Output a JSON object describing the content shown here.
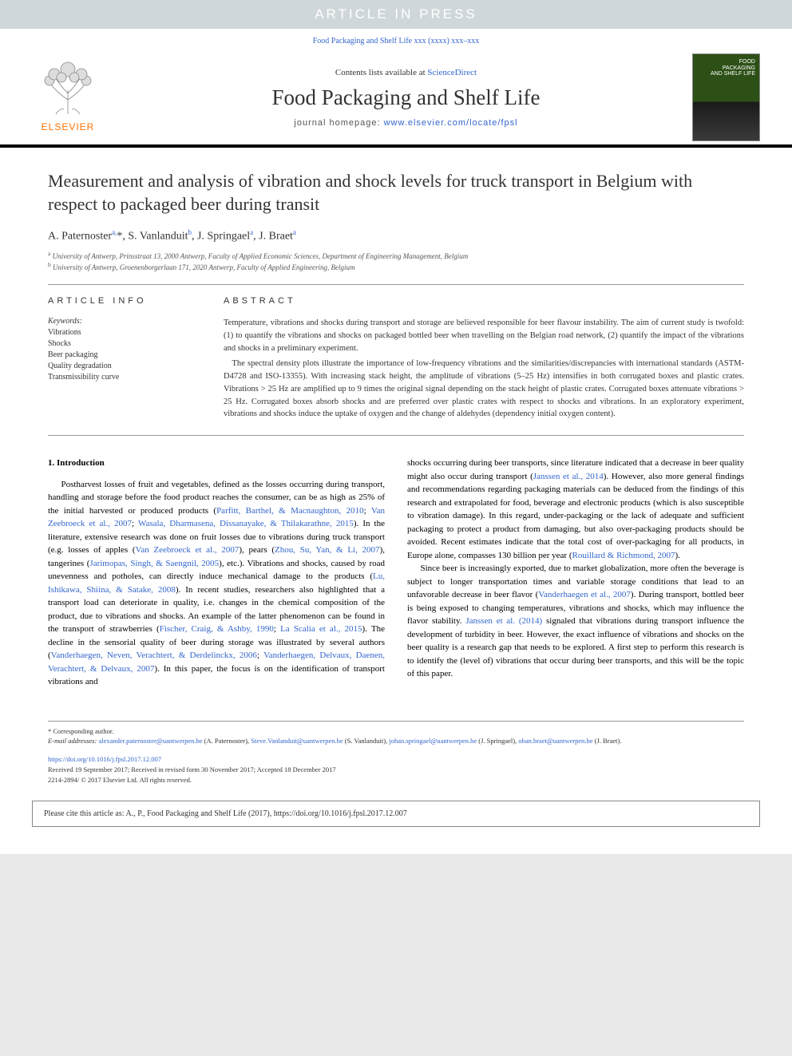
{
  "banner": {
    "text": "ARTICLE IN PRESS"
  },
  "journal_ref": "Food Packaging and Shelf Life xxx (xxxx) xxx–xxx",
  "masthead": {
    "contents_prefix": "Contents lists available at ",
    "contents_link": "ScienceDirect",
    "journal_name": "Food Packaging and Shelf Life",
    "homepage_prefix": "journal homepage: ",
    "homepage_url": "www.elsevier.com/locate/fpsl",
    "publisher": "ELSEVIER",
    "cover_line1": "FOOD",
    "cover_line2": "PACKAGING",
    "cover_line3": "AND SHELF LIFE",
    "logo_color": "#ff7200",
    "tree_color": "#888888"
  },
  "article": {
    "title": "Measurement and analysis of vibration and shock levels for truck transport in Belgium with respect to packaged beer during transit",
    "authors_html": "A. Paternoster<sup>a,</sup>*, S. Vanlanduit<sup>b</sup>, J. Springael<sup>a</sup>, J. Braet<sup>a</sup>",
    "affiliations": [
      {
        "sup": "a",
        "text": "University of Antwerp, Prinsstraat 13, 2000 Antwerp, Faculty of Applied Economic Sciences, Department of Engineering Management, Belgium"
      },
      {
        "sup": "b",
        "text": "University of Antwerp, Groenenborgerlaan 171, 2020 Antwerp, Faculty of Applied Engineering, Belgium"
      }
    ]
  },
  "article_info": {
    "heading": "ARTICLE INFO",
    "keywords_label": "Keywords:",
    "keywords": [
      "Vibrations",
      "Shocks",
      "Beer packaging",
      "Quality degradation",
      "Transmissibility curve"
    ]
  },
  "abstract": {
    "heading": "ABSTRACT",
    "paragraphs": [
      "Temperature, vibrations and shocks during transport and storage are believed responsible for beer flavour instability. The aim of current study is twofold: (1) to quantify the vibrations and shocks on packaged bottled beer when travelling on the Belgian road network, (2) quantify the impact of the vibrations and shocks in a preliminary experiment.",
      "The spectral density plots illustrate the importance of low-frequency vibrations and the similarities/discrepancies with international standards (ASTM-D4728 and ISO-13355). With increasing stack height, the amplitude of vibrations (5–25 Hz) intensifies in both corrugated boxes and plastic crates. Vibrations > 25 Hz are amplified up to 9 times the original signal depending on the stack height of plastic crates. Corrugated boxes attenuate vibrations > 25 Hz. Corrugated boxes absorb shocks and are preferred over plastic crates with respect to shocks and vibrations. In an exploratory experiment, vibrations and shocks induce the uptake of oxygen and the change of aldehydes (dependency initial oxygen content)."
    ]
  },
  "body": {
    "section_number": "1.",
    "section_title": "Introduction",
    "col1_parts": [
      "Postharvest losses of fruit and vegetables, defined as the losses occurring during transport, handling and storage before the food product reaches the consumer, can be as high as 25% of the initial harvested or produced products (",
      "Parfitt, Barthel, & Macnaughton, 2010",
      "; ",
      "Van Zeebroeck et al., 2007",
      "; ",
      "Wasala, Dharmasena, Dissanayake, & Thilakarathne, 2015",
      "). In the literature, extensive research was done on fruit losses due to vibrations during truck transport (e.g. losses of apples (",
      "Van Zeebroeck et al., 2007",
      "), pears (",
      "Zhou, Su, Yan, & Li, 2007",
      "), tangerines (",
      "Jarimopas, Singh, & Saengnil, 2005",
      "), etc.). Vibrations and shocks, caused by road unevenness and potholes, can directly induce mechanical damage to the products (",
      "Lu, Ishikawa, Shiina, & Satake, 2008",
      "). In recent studies, researchers also highlighted that a transport load can deteriorate in quality, i.e. changes in the chemical composition of the product, due to vibrations and shocks. An example of the latter phenomenon can be found in the transport of strawberries (",
      "Fischer, Craig, & Ashby, 1990",
      "; ",
      "La Scalia et al., 2015",
      "). The decline in the sensorial quality of beer during storage was illustrated by several authors (",
      "Vanderhaegen, Neven, Verachtert, & Derdelinckx, 2006",
      "; ",
      "Vanderhaegen, Delvaux, Daenen, Verachtert, & Delvaux, 2007",
      "). In this paper, the focus is on the identification of transport vibrations and "
    ],
    "col2_parts": [
      "shocks occurring during beer transports, since literature indicated that a decrease in beer quality might also occur during transport (",
      "Janssen et al., 2014",
      "). However, also more general findings and recommendations regarding packaging materials can be deduced from the findings of this research and extrapolated for food, beverage and electronic products (which is also susceptible to vibration damage). In this regard, under-packaging or the lack of adequate and sufficient packaging to protect a product from damaging, but also over-packaging products should be avoided. Recent estimates indicate that the total cost of over-packaging for all products, in Europe alone, compasses 130 billion per year (",
      "Rouillard & Richmond, 2007",
      ")."
    ],
    "col2_p2_parts": [
      "Since beer is increasingly exported, due to market globalization, more often the beverage is subject to longer transportation times and variable storage conditions that lead to an unfavorable decrease in beer flavor (",
      "Vanderhaegen et al., 2007",
      "). During transport, bottled beer is being exposed to changing temperatures, vibrations and shocks, which may influence the flavor stability. ",
      "Janssen et al. (2014)",
      " signaled that vibrations during transport influence the development of turbidity in beer. However, the exact influence of vibrations and shocks on the beer quality is a research gap that needs to be explored. A first step to perform this research is to identify the (level of) vibrations that occur during beer transports, and this will be the topic of this paper. "
    ]
  },
  "footnotes": {
    "corresponding": "* Corresponding author.",
    "email_label": "E-mail addresses:",
    "emails": [
      {
        "addr": "alexander.paternoster@uantwerpen.be",
        "who": " (A. Paternoster), "
      },
      {
        "addr": "Steve.Vanlanduit@uantwerpen.be",
        "who": " (S. Vanlanduit), "
      },
      {
        "addr": "johan.springael@uantwerpen.be",
        "who": " (J. Springael), "
      },
      {
        "addr": "ohan.braet@uantwerpen.be",
        "who": " (J. Braet)."
      }
    ]
  },
  "doi_block": {
    "doi": "https://doi.org/10.1016/j.fpsl.2017.12.007",
    "history": "Received 19 September 2017; Received in revised form 30 November 2017; Accepted 18 December 2017",
    "copyright": "2214-2894/ © 2017 Elsevier Ltd. All rights reserved."
  },
  "cite_box": "Please cite this article as: A., P., Food Packaging and Shelf Life (2017), https://doi.org/10.1016/j.fpsl.2017.12.007",
  "colors": {
    "link": "#3366cc",
    "banner_bg": "#d0d7da",
    "page_bg": "#e8e8e8",
    "rule": "#999999"
  }
}
